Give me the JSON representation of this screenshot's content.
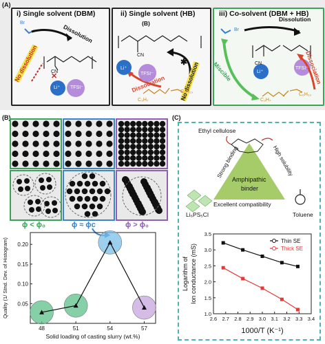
{
  "panels": {
    "a": {
      "tag": "(A)",
      "i_title": "i) Single solvent (DBM)",
      "ii_title": "ii) Single solvent (HB)",
      "iii_title": "iii) Co-solvent (DBM + HB)",
      "ii_sub": "(B)",
      "dissolution": "Dissolution",
      "no_dissolution": "No dissolution",
      "dissociation": "Dissociation",
      "miscible": "Miscible",
      "li": "Li⁺",
      "tfsi": "TFSI⁻",
      "br": "Br",
      "cn": "CN",
      "x": "x",
      "y": "y",
      "c3h7": "C₃H₇",
      "c6h13": "C₆H₁₃"
    },
    "b": {
      "tag": "(B)",
      "phi_lt": "ϕ < ϕ₀",
      "phi_eq": "ϕ ≈ ϕc",
      "phi_gt": "ϕ > ϕ₀",
      "border_colors": [
        "#3aa35a",
        "#3a85c8",
        "#8e5fb0"
      ]
    },
    "c": {
      "tag": "(C)",
      "ethyl_cellulose": "Ethyl cellulose",
      "strong_binding": "Strong binding",
      "high_solubility": "High solubility",
      "amphipathic": "Amphipathic",
      "binder": "binder",
      "compatibility": "Excellent compatibility",
      "electrolyte": "Li₆PS₅Cl",
      "toluene": "Toluene"
    }
  },
  "chart_data": [
    {
      "type": "scatter",
      "xlabel": "Solid loading of casting slurry (wt.%)",
      "ylabel": "Quality (1/ Stnd. Dev. of Histogram)",
      "x_ticks": [
        "48",
        "51",
        "54",
        "57"
      ],
      "y_ticks": [
        "0.05",
        "0.10",
        "0.15",
        "0.20"
      ],
      "xlim": [
        47,
        58
      ],
      "ylim": [
        0,
        0.23
      ],
      "series": [
        {
          "x": [
            48,
            51,
            54,
            57
          ],
          "y": [
            0.028,
            0.045,
            0.205,
            0.04
          ]
        }
      ],
      "point_colors": [
        "#5cc08a",
        "#5cc08a",
        "#7bbde8",
        "#c6a6dd"
      ]
    },
    {
      "type": "line",
      "xlabel": "1000/T (K⁻¹)",
      "ylabel": "Logarithm of Ion conductance (mS)",
      "x_ticks": [
        "2.6",
        "2.7",
        "2.8",
        "2.9",
        "3.0",
        "3.1",
        "3.2",
        "3.3",
        "3.4"
      ],
      "y_ticks": [
        "1.0",
        "1.5",
        "2.0",
        "2.5",
        "3.0",
        "3.5"
      ],
      "xlim": [
        2.6,
        3.4
      ],
      "ylim": [
        1.0,
        3.5
      ],
      "series": [
        {
          "name": "Thin SE",
          "color": "#111111",
          "x": [
            2.68,
            2.84,
            3.0,
            3.16,
            3.29
          ],
          "y": [
            3.22,
            3.0,
            2.8,
            2.6,
            2.48
          ]
        },
        {
          "name": "Thick SE",
          "color": "#e53935",
          "x": [
            2.68,
            2.84,
            3.0,
            3.16,
            3.29
          ],
          "y": [
            2.44,
            2.1,
            1.8,
            1.45,
            1.13
          ]
        }
      ]
    }
  ]
}
